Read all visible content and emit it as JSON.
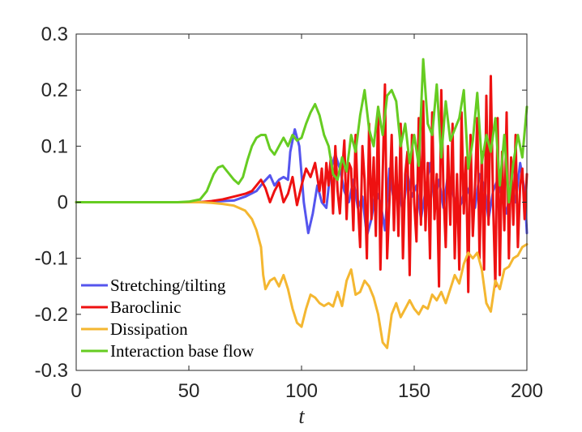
{
  "chart_data": {
    "type": "line",
    "title": "",
    "xlabel": "t",
    "ylabel": "",
    "xlim": [
      0,
      200
    ],
    "ylim": [
      -0.3,
      0.3
    ],
    "xticks": [
      0,
      50,
      100,
      150,
      200
    ],
    "yticks": [
      -0.3,
      -0.2,
      -0.1,
      0,
      0.1,
      0.2,
      0.3
    ],
    "xtick_labels": [
      "0",
      "50",
      "100",
      "150",
      "200"
    ],
    "ytick_labels": [
      "-0.3",
      "-0.2",
      "-0.1",
      "0",
      "0.1",
      "0.2",
      "0.3"
    ],
    "grid": false,
    "legend_position": "bottom-left",
    "series": [
      {
        "name": "Stretching/tilting",
        "color": "#5555ee",
        "x": [
          0,
          50,
          60,
          70,
          75,
          80,
          83,
          86,
          88,
          90,
          92,
          94,
          95,
          97,
          99,
          101,
          103,
          105,
          107,
          109,
          111,
          113,
          115,
          117,
          119,
          121,
          123,
          125,
          127,
          129,
          131,
          133,
          135,
          137,
          139,
          141,
          143,
          145,
          147,
          149,
          151,
          153,
          155,
          157,
          159,
          161,
          163,
          165,
          167,
          169,
          171,
          173,
          175,
          177,
          179,
          181,
          183,
          185,
          187,
          189,
          191,
          193,
          195,
          197,
          199,
          200
        ],
        "y": [
          0,
          0,
          0.001,
          0.003,
          0.01,
          0.02,
          0.035,
          0.048,
          0.03,
          0.04,
          0.045,
          0.04,
          0.09,
          0.13,
          0.1,
          0.0,
          -0.055,
          -0.02,
          0.03,
          0.0,
          -0.01,
          0.06,
          0.085,
          0.06,
          0.02,
          0.0,
          0.04,
          -0.01,
          0.01,
          -0.06,
          -0.03,
          0.02,
          0.0,
          -0.05,
          0.06,
          0.0,
          0.03,
          -0.02,
          0.05,
          0.01,
          0.03,
          -0.03,
          0.02,
          0.07,
          0.0,
          0.04,
          -0.01,
          0.05,
          0.02,
          -0.02,
          0.0,
          0.03,
          0.01,
          -0.01,
          0.05,
          0.03,
          -0.03,
          0.02,
          0.04,
          0.01,
          -0.02,
          0.03,
          0.0,
          0.07,
          0.02,
          -0.055
        ]
      },
      {
        "name": "Baroclinic",
        "color": "#ee1111",
        "x": [
          0,
          55,
          60,
          65,
          70,
          75,
          78,
          80,
          82,
          84,
          86,
          88,
          90,
          92,
          94,
          96,
          98,
          100,
          102,
          104,
          106,
          108,
          109,
          110,
          111,
          112,
          113,
          114,
          115,
          116,
          117,
          118,
          119,
          120,
          121,
          122,
          123,
          124,
          125,
          126,
          127,
          128,
          129,
          130,
          131,
          132,
          133,
          134,
          135,
          136,
          137,
          138,
          139,
          140,
          141,
          142,
          143,
          144,
          145,
          146,
          147,
          148,
          149,
          150,
          151,
          152,
          153,
          154,
          155,
          156,
          157,
          158,
          159,
          160,
          161,
          162,
          163,
          164,
          165,
          166,
          167,
          168,
          169,
          170,
          171,
          172,
          173,
          174,
          175,
          176,
          177,
          178,
          179,
          180,
          181,
          182,
          183,
          184,
          185,
          186,
          187,
          188,
          189,
          190,
          191,
          192,
          193,
          194,
          195,
          196,
          197,
          198,
          199,
          200
        ],
        "y": [
          0,
          0,
          0.002,
          0.005,
          0.01,
          0.015,
          0.02,
          0.03,
          0.04,
          0.025,
          0.0,
          0.02,
          0.035,
          0.0,
          0.015,
          0.045,
          -0.005,
          0.03,
          0.06,
          0.045,
          0.07,
          0.02,
          0.06,
          0.0,
          0.07,
          0.03,
          0.08,
          -0.02,
          0.1,
          0.02,
          -0.02,
          0.05,
          0.11,
          -0.03,
          0.07,
          0.06,
          -0.05,
          0.12,
          0.0,
          -0.08,
          0.1,
          0.04,
          -0.1,
          0.14,
          -0.03,
          0.08,
          -0.06,
          0.17,
          -0.12,
          0.05,
          0.21,
          -0.1,
          0.0,
          0.12,
          -0.05,
          0.08,
          -0.06,
          0.14,
          -0.1,
          0.05,
          0.09,
          -0.13,
          0.12,
          0.0,
          -0.07,
          0.15,
          -0.04,
          0.18,
          -0.05,
          0.07,
          -0.1,
          0.16,
          -0.03,
          0.05,
          -0.15,
          0.2,
          0.02,
          -0.08,
          0.1,
          -0.04,
          0.14,
          -0.1,
          0.05,
          -0.12,
          0.16,
          -0.02,
          0.08,
          -0.16,
          0.12,
          -0.06,
          0.03,
          0.15,
          -0.1,
          0.09,
          -0.12,
          0.19,
          -0.04,
          0.225,
          0.0,
          -0.15,
          0.15,
          -0.13,
          0.09,
          -0.05,
          0.16,
          -0.1,
          0.08,
          -0.04,
          0.12,
          -0.08,
          0.03,
          0.06,
          -0.03,
          0.05
        ]
      },
      {
        "name": "Dissipation",
        "color": "#f4b731",
        "x": [
          0,
          55,
          60,
          65,
          70,
          75,
          78,
          80,
          82,
          83,
          84,
          86,
          88,
          90,
          92,
          94,
          96,
          98,
          100,
          102,
          104,
          106,
          108,
          110,
          112,
          114,
          116,
          118,
          120,
          122,
          124,
          126,
          128,
          130,
          132,
          134,
          136,
          138,
          140,
          142,
          144,
          146,
          148,
          150,
          152,
          154,
          156,
          158,
          160,
          162,
          164,
          166,
          168,
          170,
          172,
          174,
          176,
          178,
          180,
          182,
          184,
          186,
          188,
          190,
          192,
          194,
          196,
          198,
          200
        ],
        "y": [
          0,
          0,
          -0.001,
          -0.003,
          -0.006,
          -0.015,
          -0.03,
          -0.05,
          -0.08,
          -0.13,
          -0.155,
          -0.14,
          -0.135,
          -0.15,
          -0.13,
          -0.155,
          -0.19,
          -0.215,
          -0.222,
          -0.19,
          -0.165,
          -0.17,
          -0.18,
          -0.185,
          -0.18,
          -0.186,
          -0.16,
          -0.185,
          -0.14,
          -0.12,
          -0.165,
          -0.16,
          -0.14,
          -0.15,
          -0.17,
          -0.2,
          -0.25,
          -0.26,
          -0.2,
          -0.18,
          -0.205,
          -0.19,
          -0.175,
          -0.19,
          -0.2,
          -0.185,
          -0.19,
          -0.165,
          -0.175,
          -0.16,
          -0.18,
          -0.155,
          -0.13,
          -0.145,
          -0.11,
          -0.09,
          -0.1,
          -0.09,
          -0.12,
          -0.18,
          -0.195,
          -0.14,
          -0.155,
          -0.12,
          -0.115,
          -0.1,
          -0.095,
          -0.08,
          -0.075
        ]
      },
      {
        "name": "Interaction base flow",
        "color": "#66cc22",
        "x": [
          0,
          45,
          50,
          55,
          58,
          61,
          63,
          65,
          67,
          70,
          72,
          74,
          76,
          78,
          80,
          82,
          84,
          86,
          88,
          90,
          92,
          94,
          96,
          98,
          100,
          102,
          104,
          106,
          108,
          110,
          112,
          114,
          116,
          118,
          120,
          122,
          124,
          126,
          128,
          130,
          132,
          134,
          136,
          138,
          140,
          142,
          144,
          146,
          148,
          150,
          152,
          154,
          156,
          158,
          160,
          162,
          164,
          166,
          168,
          170,
          172,
          174,
          176,
          178,
          180,
          182,
          184,
          186,
          188,
          190,
          192,
          194,
          196,
          198,
          200
        ],
        "y": [
          0,
          0,
          0.001,
          0.005,
          0.02,
          0.05,
          0.062,
          0.065,
          0.055,
          0.04,
          0.033,
          0.045,
          0.075,
          0.1,
          0.115,
          0.12,
          0.12,
          0.095,
          0.085,
          0.1,
          0.115,
          0.1,
          0.12,
          0.11,
          0.115,
          0.14,
          0.16,
          0.175,
          0.155,
          0.12,
          0.1,
          0.05,
          0.04,
          0.08,
          0.055,
          0.12,
          0.09,
          0.155,
          0.2,
          0.13,
          0.1,
          0.17,
          0.12,
          0.19,
          0.2,
          0.18,
          0.1,
          0.14,
          0.07,
          0.12,
          0.065,
          0.255,
          0.14,
          0.12,
          0.21,
          0.08,
          0.18,
          0.11,
          0.13,
          0.15,
          0.2,
          0.06,
          0.11,
          0.195,
          0.07,
          0.12,
          0.09,
          0.15,
          0.03,
          0.12,
          0.0,
          0.07,
          0.12,
          0.08,
          0.17
        ]
      }
    ]
  }
}
